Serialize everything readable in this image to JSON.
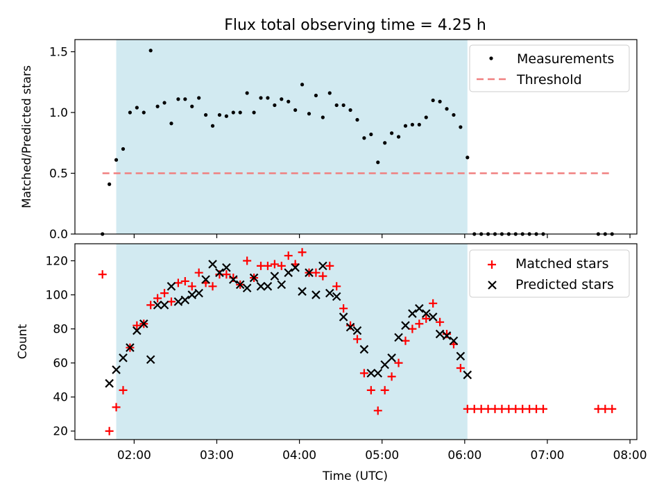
{
  "figure": {
    "title": "Flux total observing time = 4.25 h",
    "shaded_color": "#add8e6",
    "threshold_color": "#f08080",
    "matched_color": "#ff0000",
    "predicted_color": "#000000",
    "measurement_color": "#000000"
  },
  "chart_data": [
    {
      "type": "scatter",
      "title": "Flux total observing time = 4.25 h",
      "xlabel": "",
      "ylabel": "Matched/Predicted stars",
      "xlim": [
        "01:17",
        "08:05"
      ],
      "ylim": [
        0,
        1.6
      ],
      "yticks": [
        0.0,
        0.5,
        1.0,
        1.5
      ],
      "ytick_labels": [
        "0.0",
        "0.5",
        "1.0",
        "1.5"
      ],
      "xticks": [
        "02:00",
        "03:00",
        "04:00",
        "05:00",
        "06:00",
        "07:00",
        "08:00"
      ],
      "grid": false,
      "legend": "top-right",
      "shaded_region": [
        "01:47",
        "06:02"
      ],
      "threshold": {
        "name": "Threshold",
        "y": 0.5,
        "x_range": [
          "01:37",
          "07:47"
        ]
      },
      "series": [
        {
          "name": "Measurements",
          "x": [
            "01:37",
            "01:42",
            "01:47",
            "01:52",
            "01:57",
            "02:02",
            "02:07",
            "02:12",
            "02:17",
            "02:22",
            "02:27",
            "02:32",
            "02:37",
            "02:42",
            "02:47",
            "02:52",
            "02:57",
            "03:02",
            "03:07",
            "03:12",
            "03:17",
            "03:22",
            "03:27",
            "03:32",
            "03:37",
            "03:42",
            "03:47",
            "03:52",
            "03:57",
            "04:02",
            "04:07",
            "04:12",
            "04:17",
            "04:22",
            "04:27",
            "04:32",
            "04:37",
            "04:42",
            "04:47",
            "04:52",
            "04:57",
            "05:02",
            "05:07",
            "05:12",
            "05:17",
            "05:22",
            "05:27",
            "05:32",
            "05:37",
            "05:42",
            "05:47",
            "05:52",
            "05:57",
            "06:02",
            "06:07",
            "06:12",
            "06:17",
            "06:22",
            "06:27",
            "06:32",
            "06:37",
            "06:42",
            "06:47",
            "06:52",
            "06:57",
            "07:37",
            "07:42",
            "07:47"
          ],
          "y": [
            0.0,
            0.41,
            0.61,
            0.7,
            1.0,
            1.04,
            1.0,
            1.51,
            1.05,
            1.08,
            0.91,
            1.11,
            1.11,
            1.05,
            1.12,
            0.98,
            0.89,
            0.98,
            0.97,
            1.0,
            1.0,
            1.16,
            1.0,
            1.12,
            1.12,
            1.06,
            1.11,
            1.09,
            1.02,
            1.23,
            0.99,
            1.14,
            0.96,
            1.16,
            1.06,
            1.06,
            1.02,
            0.94,
            0.79,
            0.82,
            0.59,
            0.75,
            0.83,
            0.8,
            0.89,
            0.9,
            0.9,
            0.96,
            1.1,
            1.09,
            1.03,
            0.98,
            0.88,
            0.63,
            0.0,
            0.0,
            0.0,
            0.0,
            0.0,
            0.0,
            0.0,
            0.0,
            0.0,
            0.0,
            0.0,
            0.0,
            0.0,
            0.0
          ]
        }
      ]
    },
    {
      "type": "scatter",
      "title": "",
      "xlabel": "Time (UTC)",
      "ylabel": "Count",
      "xlim": [
        "01:17",
        "08:05"
      ],
      "ylim": [
        15,
        130
      ],
      "yticks": [
        20,
        40,
        60,
        80,
        100,
        120
      ],
      "xticks": [
        "02:00",
        "03:00",
        "04:00",
        "05:00",
        "06:00",
        "07:00",
        "08:00"
      ],
      "grid": false,
      "legend": "top-right",
      "shaded_region": [
        "01:47",
        "06:02"
      ],
      "series": [
        {
          "name": "Matched stars",
          "x": [
            "01:37",
            "01:42",
            "01:47",
            "01:52",
            "01:57",
            "02:02",
            "02:07",
            "02:12",
            "02:17",
            "02:22",
            "02:27",
            "02:32",
            "02:37",
            "02:42",
            "02:47",
            "02:52",
            "02:57",
            "03:02",
            "03:07",
            "03:12",
            "03:17",
            "03:22",
            "03:27",
            "03:32",
            "03:37",
            "03:42",
            "03:47",
            "03:52",
            "03:57",
            "04:02",
            "04:07",
            "04:12",
            "04:17",
            "04:22",
            "04:27",
            "04:32",
            "04:37",
            "04:42",
            "04:47",
            "04:52",
            "04:57",
            "05:02",
            "05:07",
            "05:12",
            "05:17",
            "05:22",
            "05:27",
            "05:32",
            "05:37",
            "05:42",
            "05:47",
            "05:52",
            "05:57",
            "06:02",
            "06:07",
            "06:12",
            "06:17",
            "06:22",
            "06:27",
            "06:32",
            "06:37",
            "06:42",
            "06:47",
            "06:52",
            "06:57",
            "07:37",
            "07:42",
            "07:47"
          ],
          "y": [
            112,
            20,
            34,
            44,
            69,
            82,
            83,
            94,
            98,
            101,
            96,
            107,
            108,
            105,
            113,
            107,
            105,
            112,
            112,
            110,
            106,
            120,
            110,
            117,
            117,
            118,
            117,
            123,
            118,
            125,
            113,
            113,
            111,
            117,
            105,
            92,
            82,
            74,
            54,
            44,
            32,
            44,
            52,
            60,
            73,
            80,
            83,
            86,
            95,
            84,
            77,
            71,
            57,
            33,
            33,
            33,
            33,
            33,
            33,
            33,
            33,
            33,
            33,
            33,
            33,
            33,
            33,
            33
          ]
        },
        {
          "name": "Predicted stars",
          "x": [
            "01:42",
            "01:47",
            "01:52",
            "01:57",
            "02:02",
            "02:07",
            "02:12",
            "02:17",
            "02:22",
            "02:27",
            "02:32",
            "02:37",
            "02:42",
            "02:47",
            "02:52",
            "02:57",
            "03:02",
            "03:07",
            "03:12",
            "03:17",
            "03:22",
            "03:27",
            "03:32",
            "03:37",
            "03:42",
            "03:47",
            "03:52",
            "03:57",
            "04:02",
            "04:07",
            "04:12",
            "04:17",
            "04:22",
            "04:27",
            "04:32",
            "04:37",
            "04:42",
            "04:47",
            "04:52",
            "04:57",
            "05:02",
            "05:07",
            "05:12",
            "05:17",
            "05:22",
            "05:27",
            "05:32",
            "05:37",
            "05:42",
            "05:47",
            "05:52",
            "05:57",
            "06:02"
          ],
          "y": [
            48,
            56,
            63,
            69,
            79,
            83,
            62,
            94,
            94,
            105,
            96,
            97,
            100,
            101,
            109,
            118,
            113,
            116,
            109,
            106,
            104,
            110,
            105,
            105,
            111,
            106,
            113,
            116,
            102,
            113,
            100,
            117,
            101,
            99,
            87,
            81,
            79,
            68,
            54,
            54,
            59,
            63,
            75,
            82,
            89,
            92,
            89,
            87,
            77,
            76,
            73,
            64,
            53
          ]
        }
      ]
    }
  ]
}
